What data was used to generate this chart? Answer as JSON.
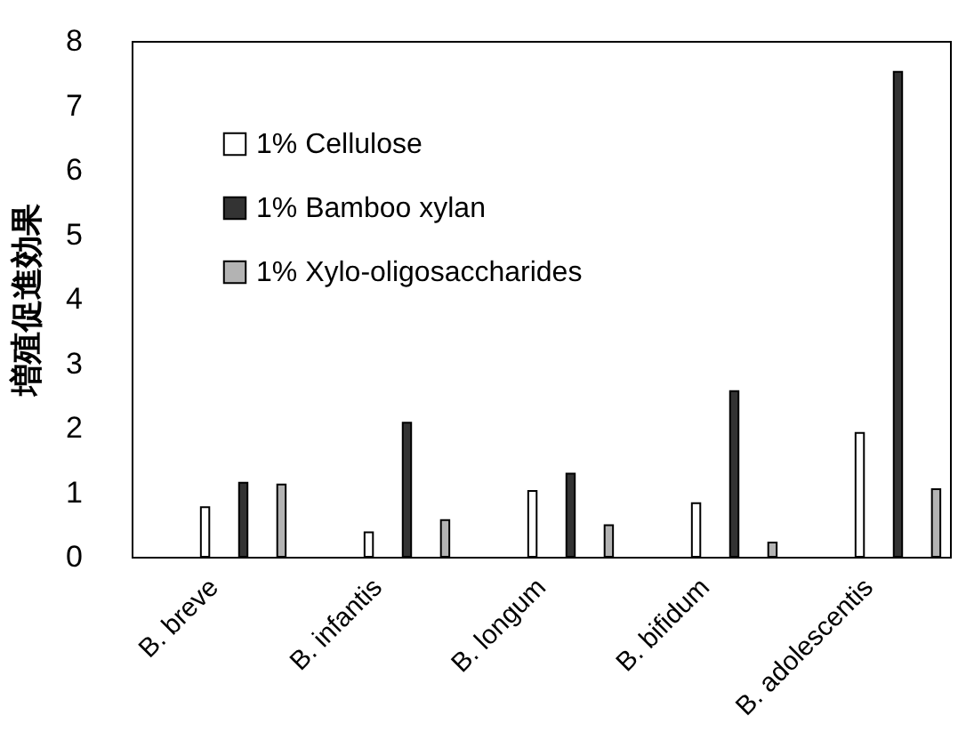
{
  "chart_data": {
    "type": "bar",
    "ylabel": "増殖促進効果",
    "categories": [
      "B. breve",
      "B. infantis",
      "B. longum",
      "B. bifidum",
      "B. adolescentis"
    ],
    "series": [
      {
        "name": "1% Cellulose",
        "color": "#ffffff",
        "values": [
          0.77,
          0.38,
          1.02,
          0.83,
          1.92
        ]
      },
      {
        "name": "1% Bamboo xylan",
        "color": "#333333",
        "values": [
          1.15,
          2.08,
          1.29,
          2.57,
          7.52
        ]
      },
      {
        "name": "1% Xylo-oligosaccharides",
        "color": "#b3b3b3",
        "values": [
          1.12,
          0.57,
          0.49,
          0.22,
          1.05
        ]
      }
    ],
    "ylim": [
      0,
      8
    ],
    "yticks": [
      0,
      1,
      2,
      3,
      4,
      5,
      6,
      7,
      8
    ],
    "grid": false,
    "legend": "top left"
  }
}
